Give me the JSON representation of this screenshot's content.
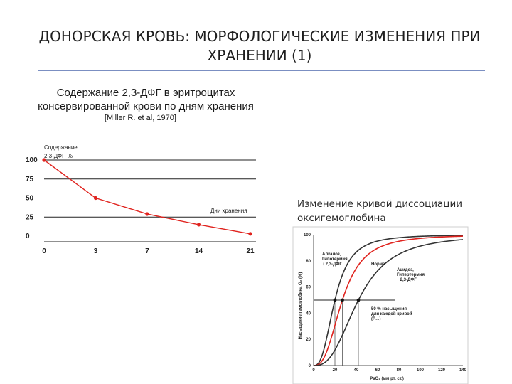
{
  "slide": {
    "title_line1": "ДОНОРСКАЯ КРОВЬ: МОРФОЛОГИЧЕСКИЕ ИЗМЕНЕНИЯ ПРИ",
    "title_line2": "ХРАНЕНИИ (1)",
    "accent_color": "#7b8fc2"
  },
  "left_panel": {
    "caption_line1": "Содержание 2,3-ДФГ в эритроцитах",
    "caption_line2": "консервированной крови по дням хранения",
    "source": "[Miller R. et al, 1970]"
  },
  "right_panel": {
    "caption_line1": "Изменение кривой диссоциации",
    "caption_line2": "оксигемоглобина"
  },
  "chart_data": [
    {
      "type": "line",
      "ylabel_line1": "Содержание",
      "ylabel_line2": "2,3-ДФГ, %",
      "xlabel": "Дни хранения",
      "x": [
        0,
        3,
        7,
        14,
        21
      ],
      "x_tick_labels": [
        "0",
        "3",
        "7",
        "14",
        "21"
      ],
      "y_ticks": [
        0,
        25,
        50,
        75,
        100
      ],
      "ylim": [
        0,
        100
      ],
      "series": [
        {
          "values": [
            100,
            50,
            29,
            15,
            3
          ],
          "color": "#e0231e"
        }
      ],
      "grid": "horizontal"
    },
    {
      "type": "line",
      "ylabel": "Насыщение гемоглобина O₂ (%)",
      "xlabel": "PaO₂ (мм рт. ст.)",
      "x_ticks": [
        0,
        20,
        40,
        60,
        80,
        100,
        120,
        140
      ],
      "y_ticks": [
        0,
        20,
        40,
        60,
        80,
        100
      ],
      "xlim": [
        0,
        140
      ],
      "ylim": [
        0,
        100
      ],
      "p50_line": 50,
      "series": [
        {
          "p50": 20,
          "color": "#333333"
        },
        {
          "p50": 27,
          "color": "#e0231e"
        },
        {
          "p50": 42,
          "color": "#333333"
        }
      ],
      "annotations": {
        "left_line1": "Алкалоз,",
        "left_line2": "Гипотермия",
        "left_line3": "↓ 2,3-ДФГ",
        "center": "Норма",
        "right_line1": "Ацидоз,",
        "right_line2": "Гипертермия",
        "right_line3": "↑ 2,3-ДФГ",
        "p50_line1": "50 % насыщения",
        "p50_line2": "для каждой кривой",
        "p50_line3": "(P₅₀)"
      }
    }
  ]
}
